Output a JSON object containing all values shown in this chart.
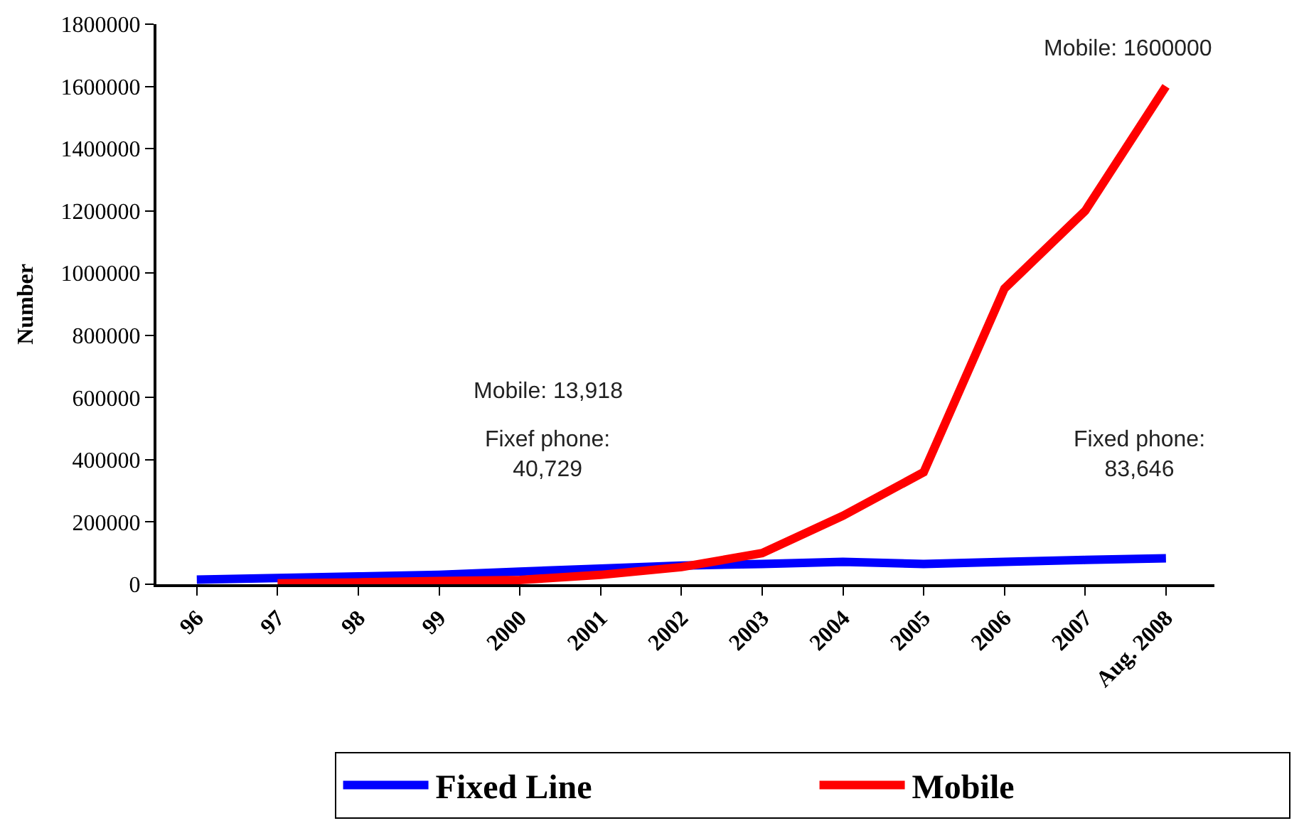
{
  "chart_data": {
    "type": "line",
    "ylabel": "Number",
    "categories": [
      "96",
      "97",
      "98",
      "99",
      "2000",
      "2001",
      "2002",
      "2003",
      "2004",
      "2005",
      "2006",
      "2007",
      "Aug. 2008"
    ],
    "series": [
      {
        "name": "Fixed Line",
        "color": "#0000ff",
        "values": [
          15000,
          20000,
          25000,
          30000,
          40729,
          50000,
          60000,
          65000,
          72000,
          65000,
          72000,
          78000,
          83646
        ]
      },
      {
        "name": "Mobile",
        "color": "#ff0000",
        "values": [
          null,
          3000,
          6000,
          10000,
          13918,
          30000,
          55000,
          100000,
          220000,
          360000,
          950000,
          1200000,
          1600000
        ]
      }
    ],
    "ylim": [
      0,
      1800000
    ],
    "yticks": [
      0,
      200000,
      400000,
      600000,
      800000,
      1000000,
      1200000,
      1400000,
      1600000,
      1800000
    ],
    "annotations": [
      "Mobile: 13,918",
      "Fixef phone:\n40,729",
      "Mobile: 1600000",
      "Fixed phone:\n83,646"
    ],
    "legend": "bottom",
    "marker": "none",
    "line_style": "solid"
  }
}
